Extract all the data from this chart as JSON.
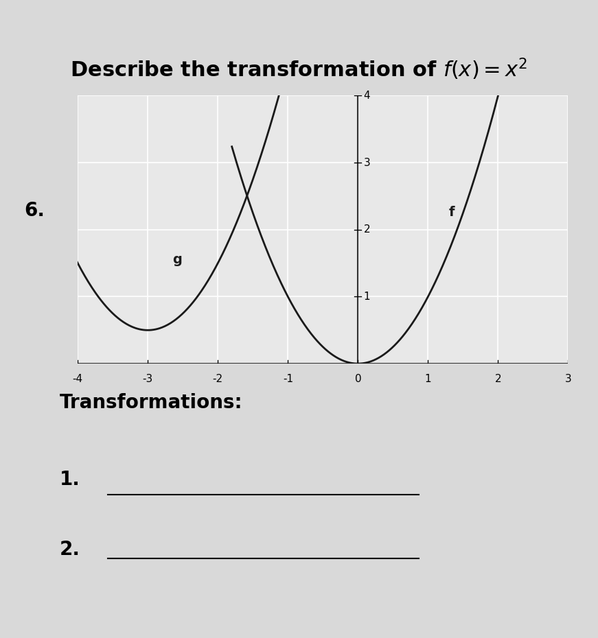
{
  "title": "Describe the transformation of $f(x) = x^2$",
  "label_number": "6.",
  "transformations_label": "Transformations:",
  "item1_label": "1.",
  "item2_label": "2.",
  "x_min": -4,
  "x_max": 3,
  "y_min": 0,
  "y_max": 4,
  "x_ticks": [
    -4,
    -3,
    -2,
    -1,
    0,
    1,
    2,
    3
  ],
  "y_ticks": [
    1,
    2,
    3,
    4
  ],
  "f_label": "f",
  "g_label": "g",
  "f_vertex_x": 0,
  "f_vertex_y": 0,
  "g_vertex_x": -3,
  "g_vertex_y": 0.5,
  "background_color": "#d9d9d9",
  "grid_color": "#ffffff",
  "plot_bg_color": "#e8e8e8",
  "curve_color": "#1a1a1a",
  "line_color": "#333333",
  "title_fontsize": 22,
  "label_fontsize": 16,
  "tick_fontsize": 11,
  "annotation_fontsize": 14
}
